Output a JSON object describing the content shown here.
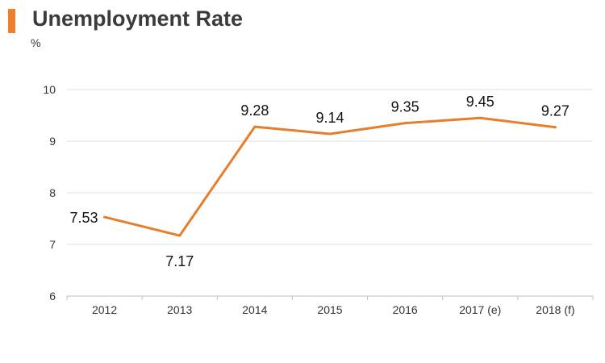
{
  "header": {
    "title": "Unemployment Rate",
    "unit": "%"
  },
  "colors": {
    "accent": "#f07f2c",
    "line": "#e67e2e",
    "grid": "#dcdcdc",
    "axis": "#bfbfbf"
  },
  "chart_data": {
    "type": "line",
    "title": "Unemployment Rate",
    "ylabel": "%",
    "xlabel": "",
    "categories": [
      "2012",
      "2013",
      "2014",
      "2015",
      "2016",
      "2017 (e)",
      "2018 (f)"
    ],
    "series": [
      {
        "values": [
          7.53,
          7.17,
          9.28,
          9.14,
          9.35,
          9.45,
          9.27
        ]
      }
    ],
    "data_labels": [
      "7.53",
      "7.17",
      "9.28",
      "9.14",
      "9.35",
      "9.45",
      "9.27"
    ],
    "ylim": [
      6,
      10
    ],
    "yticks": [
      6,
      7,
      8,
      9,
      10
    ],
    "grid": true,
    "legend": "none"
  }
}
